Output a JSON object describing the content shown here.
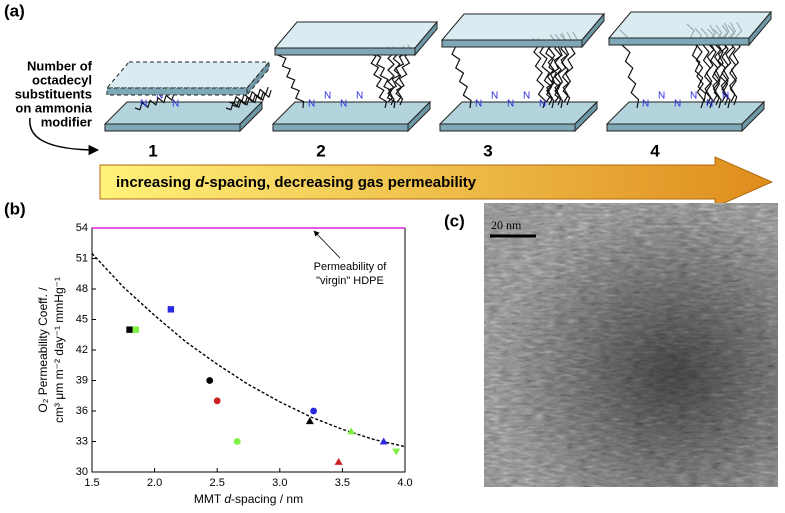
{
  "panel_a": {
    "label": "(a)",
    "modifier_note": [
      "Number of",
      "octadecyl",
      "substituents",
      "on ammonia",
      "modifier"
    ],
    "stages": [
      1,
      2,
      3,
      4
    ],
    "nitrogen_label": "N",
    "arrow_text": [
      "increasing ",
      "d",
      "-spacing, decreasing gas permeability"
    ]
  },
  "chart_data": {
    "type": "scatter",
    "panel_label": "(b)",
    "ylabel": [
      "O₂ Permeability Coeff. /",
      "cm³ μm m⁻² day⁻¹ mmHg⁻¹"
    ],
    "xlabel": [
      "MMT ",
      "d",
      "-spacing / nm"
    ],
    "xlim": [
      1.5,
      4.0
    ],
    "ylim": [
      30,
      54
    ],
    "xticks": [
      1.5,
      {
        "value": 2,
        "label": "2.0"
      },
      2.5,
      {
        "value": 3,
        "label": "3.0"
      },
      3.5,
      {
        "value": 4,
        "label": "4.0"
      }
    ],
    "yticks": [
      30,
      33,
      36,
      39,
      42,
      45,
      48,
      51,
      54
    ],
    "points": [
      {
        "x": 1.8,
        "y": 44,
        "color": "#000000",
        "marker": "square"
      },
      {
        "x": 1.85,
        "y": 44,
        "color": "#7ff040",
        "marker": "square"
      },
      {
        "x": 2.13,
        "y": 46,
        "color": "#2a2ae0",
        "marker": "square"
      },
      {
        "x": 2.44,
        "y": 39,
        "color": "#000000",
        "marker": "circle"
      },
      {
        "x": 2.5,
        "y": 37,
        "color": "#cc2222",
        "marker": "circle"
      },
      {
        "x": 2.66,
        "y": 33,
        "color": "#7ff040",
        "marker": "circle"
      },
      {
        "x": 3.24,
        "y": 35,
        "color": "#000000",
        "marker": "triangle-up"
      },
      {
        "x": 3.27,
        "y": 36,
        "color": "#2a2ae0",
        "marker": "circle"
      },
      {
        "x": 3.47,
        "y": 31,
        "color": "#cc2222",
        "marker": "triangle-up"
      },
      {
        "x": 3.57,
        "y": 34,
        "color": "#7ff040",
        "marker": "triangle-up"
      },
      {
        "x": 3.83,
        "y": 33,
        "color": "#2a2ae0",
        "marker": "triangle-up"
      },
      {
        "x": 3.93,
        "y": 32,
        "color": "#7ff040",
        "marker": "triangle-down"
      }
    ],
    "fit": {
      "x": [
        1.5,
        1.75,
        2.0,
        2.25,
        2.5,
        2.75,
        3.0,
        3.25,
        3.5,
        3.75,
        4.0
      ],
      "y": [
        51.5,
        48.2,
        45.4,
        42.8,
        40.6,
        38.6,
        36.9,
        35.4,
        34.2,
        33.2,
        32.5
      ],
      "color": "#000000",
      "dashed": true
    },
    "reference_line": {
      "value": 54,
      "color": "#e020e0",
      "label": [
        "Permeability of",
        "\"virgin\" HDPE"
      ]
    }
  },
  "panel_c": {
    "label": "(c)",
    "scale_bar": "20 nm"
  }
}
